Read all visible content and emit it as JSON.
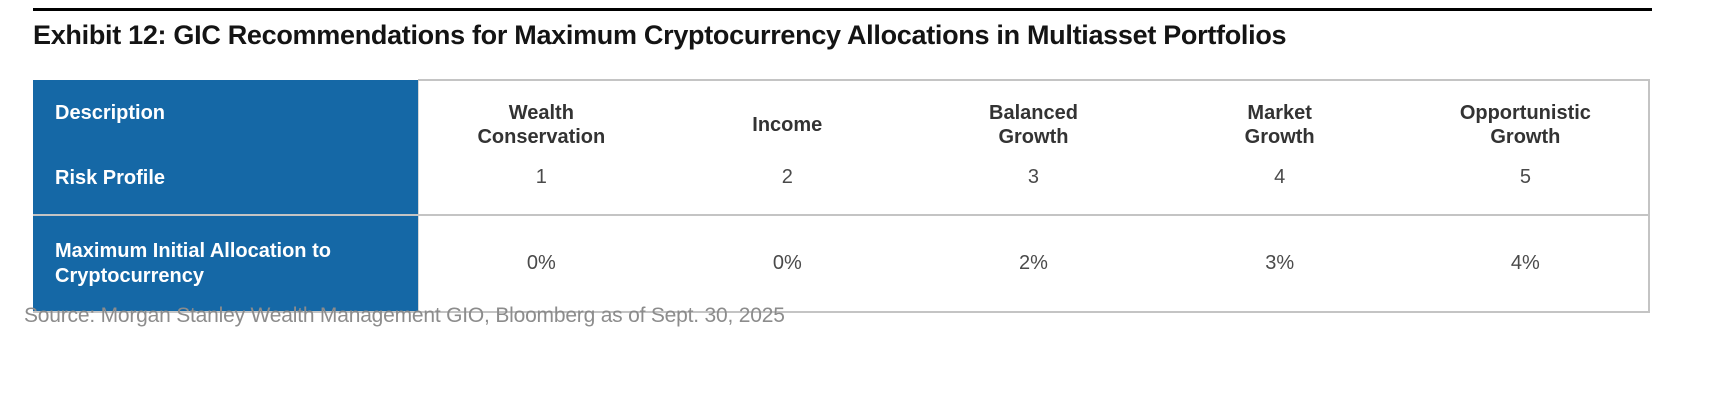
{
  "title": "Exhibit 12: GIC Recommendations for Maximum Cryptocurrency Allocations in Multiasset Portfolios",
  "source": "Source: Morgan Stanley Wealth Management GIO, Bloomberg as of Sept. 30, 2025",
  "colors": {
    "header_blue": "#1568A6",
    "border_gray": "#C4C4C4",
    "title_rule_black": "#000000",
    "source_gray": "#8C8C8C"
  },
  "table": {
    "row_labels": {
      "description": "Description",
      "risk_profile": "Risk Profile",
      "max_allocation": "Maximum Initial Allocation to Cryptocurrency"
    },
    "columns": [
      {
        "label": "Wealth Conservation",
        "label_lines": [
          "Wealth",
          "Conservation"
        ],
        "risk_profile": "1",
        "max_allocation": "0%"
      },
      {
        "label": "Income",
        "label_lines": [
          "Income"
        ],
        "risk_profile": "2",
        "max_allocation": "0%"
      },
      {
        "label": "Balanced Growth",
        "label_lines": [
          "Balanced",
          "Growth"
        ],
        "risk_profile": "3",
        "max_allocation": "2%"
      },
      {
        "label": "Market Growth",
        "label_lines": [
          "Market",
          "Growth"
        ],
        "risk_profile": "4",
        "max_allocation": "3%"
      },
      {
        "label": "Opportunistic Growth",
        "label_lines": [
          "Opportunistic",
          "Growth"
        ],
        "risk_profile": "5",
        "max_allocation": "4%"
      }
    ]
  },
  "chart_data": {
    "type": "table",
    "columns": [
      "Description / Risk Profile",
      "Wealth Conservation",
      "Income",
      "Balanced Growth",
      "Market Growth",
      "Opportunistic Growth"
    ],
    "rows": [
      [
        "Risk Profile",
        "1",
        "2",
        "3",
        "4",
        "5"
      ],
      [
        "Maximum Initial Allocation to Cryptocurrency",
        "0%",
        "0%",
        "2%",
        "3%",
        "4%"
      ]
    ]
  }
}
